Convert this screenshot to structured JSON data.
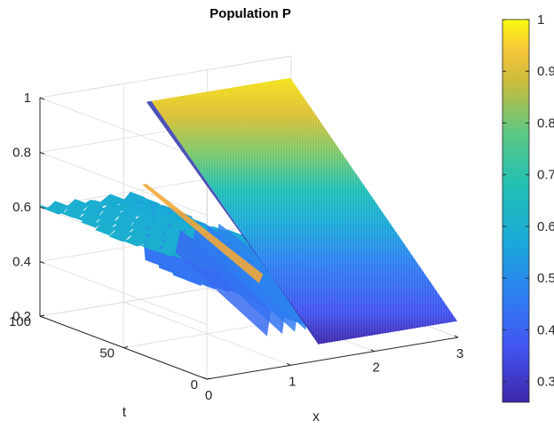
{
  "chart_data": {
    "type": "surface",
    "title": "Population P",
    "xlabel": "x",
    "ylabel": "t",
    "zlabel": "",
    "xlim": [
      0,
      3
    ],
    "ylim": [
      0,
      100
    ],
    "zlim": [
      0.2,
      1
    ],
    "x_ticks": [
      "0",
      "1",
      "2",
      "3"
    ],
    "y_ticks": [
      "0",
      "50",
      "100"
    ],
    "z_ticks": [
      "0.2",
      "0.4",
      "0.6",
      "0.8",
      "1"
    ],
    "colorbar": {
      "ticks": [
        "0.3",
        "0.4",
        "0.5",
        "0.6",
        "0.7",
        "0.8",
        "0.9",
        "1"
      ],
      "range": [
        0.26,
        1
      ],
      "colormap": "parula"
    },
    "profile_at_t100": {
      "x": [
        0,
        0.2,
        0.35,
        0.5,
        0.65,
        0.8,
        0.95,
        1.1,
        1.2,
        1.27,
        1.35,
        1.6,
        2.0,
        2.5,
        3.0
      ],
      "P": [
        0.6,
        0.6,
        0.59,
        0.6,
        0.58,
        0.6,
        0.57,
        0.59,
        0.55,
        0.3,
        0.92,
        0.92,
        0.92,
        0.92,
        0.92
      ]
    },
    "profile_at_t0": {
      "x": [
        0,
        0.5,
        1.0,
        1.2,
        1.28,
        1.33,
        1.38,
        1.6,
        2.0,
        2.5,
        3.0
      ],
      "P": [
        0.6,
        0.55,
        0.5,
        0.4,
        0.26,
        0.48,
        0.26,
        0.26,
        0.26,
        0.26,
        0.26
      ]
    },
    "grid": true
  }
}
